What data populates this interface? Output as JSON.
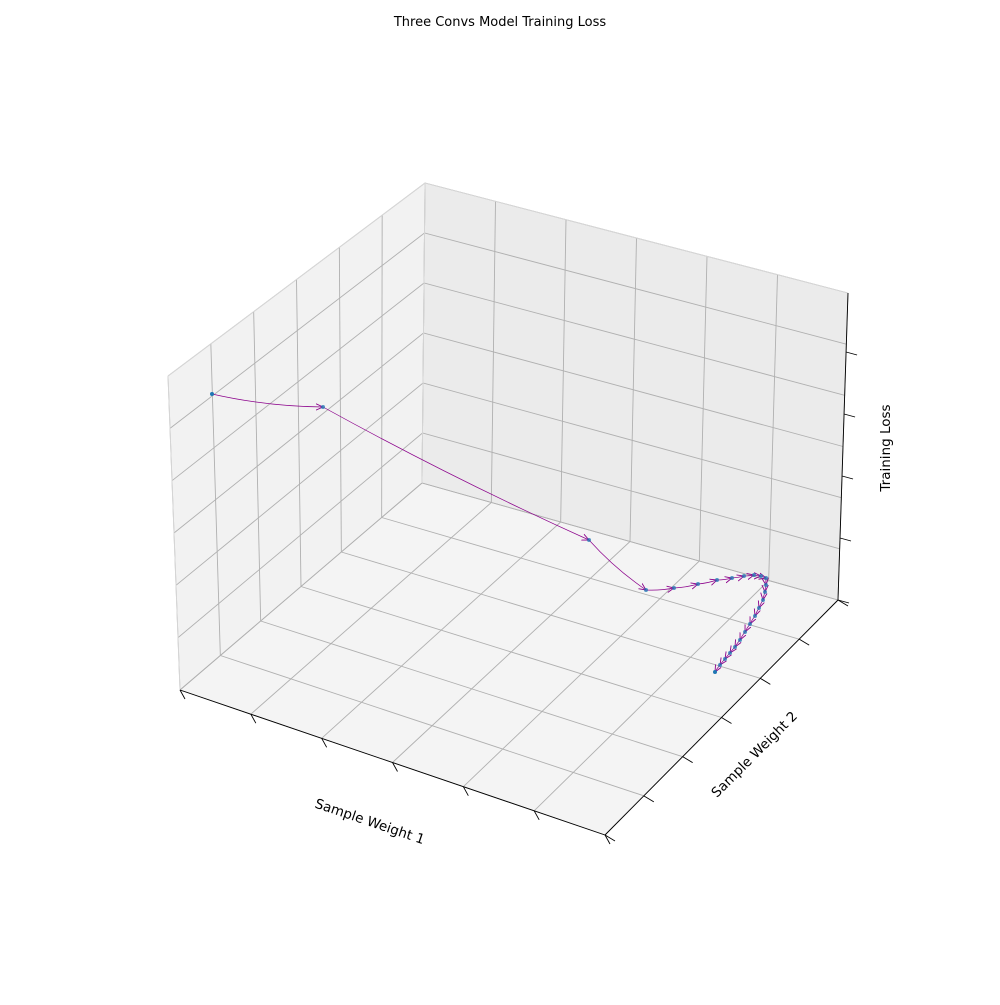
{
  "chart_data": {
    "type": "3d-line",
    "title": "Three Convs Model Training Loss",
    "xlabel": "Sample Weight 1",
    "ylabel": "Sample Weight 2",
    "zlabel": "Training Loss",
    "tick_labels_shown": false,
    "grid": true,
    "colors": {
      "path": "#8b008b",
      "points": "#1f77b4",
      "pane_left": "#f2f2f2",
      "pane_right": "#ebebeb",
      "pane_floor": "#f4f4f4",
      "grid": "#b0b0b0"
    }
  }
}
